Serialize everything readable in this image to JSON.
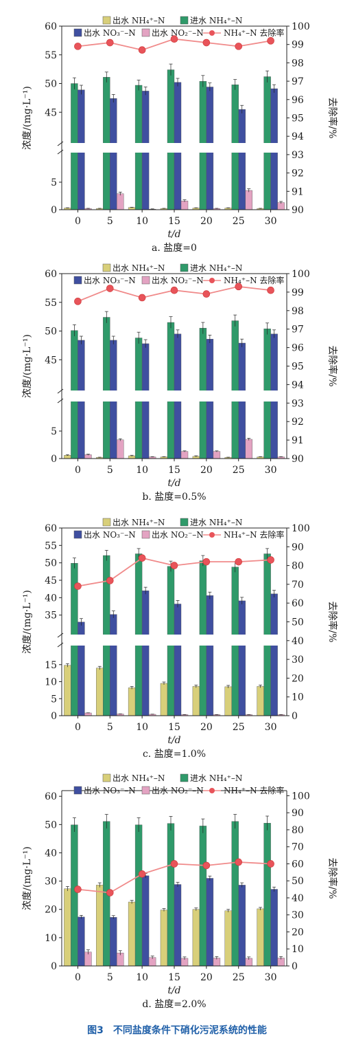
{
  "figure_caption": "图3　不同盐度条件下硝化污泥系统的性能",
  "legend_labels": {
    "eff_nh4": "出水 NH₄⁺–N",
    "inf_nh4": "进水 NH₄⁺–N",
    "eff_no3": "出水 NO₃⁻–N",
    "eff_no2": "出水 NO₂⁻–N",
    "removal": "NH₄⁺–N 去除率"
  },
  "colors": {
    "eff_nh4": "#d8cf7a",
    "inf_nh4": "#2f9a6a",
    "eff_no3": "#3f4fa0",
    "eff_no2": "#e3a3c2",
    "removal_line": "#f08a8a",
    "removal_marker": "#e8545a"
  },
  "chart_data": [
    {
      "type": "bar",
      "subtitle": "a. 盐度=0",
      "xlabel": "t/d",
      "ylabel": "浓度/(mg·L⁻¹)",
      "y2label": "去除率/%",
      "categories": [
        "0",
        "5",
        "10",
        "15",
        "20",
        "25",
        "30"
      ],
      "y_axis_broken": true,
      "y_lower_range": [
        0,
        10
      ],
      "y_upper_range": [
        40,
        60
      ],
      "y_lower_ticks": [
        0,
        5
      ],
      "y_upper_ticks": [
        45,
        50,
        55,
        60
      ],
      "y2_range": [
        90,
        100
      ],
      "y2_ticks": [
        90,
        91,
        92,
        93,
        94,
        95,
        96,
        97,
        98,
        99,
        100
      ],
      "series": [
        {
          "key": "eff_nh4",
          "name": "出水 NH₄⁺–N",
          "values": [
            0.3,
            0.2,
            0.4,
            0.2,
            0.3,
            0.3,
            0.2
          ],
          "errors": [
            0.05,
            0.05,
            0.05,
            0.05,
            0.05,
            0.05,
            0.05
          ]
        },
        {
          "key": "inf_nh4",
          "name": "进水 NH₄⁺–N",
          "values": [
            50.0,
            51.1,
            49.7,
            52.4,
            50.4,
            49.8,
            51.2
          ],
          "errors": [
            1.0,
            0.9,
            0.9,
            1.0,
            1.0,
            0.9,
            1.0
          ]
        },
        {
          "key": "eff_no3",
          "name": "出水 NO₃⁻–N",
          "values": [
            48.9,
            47.4,
            48.7,
            50.2,
            49.4,
            45.5,
            49.1
          ],
          "errors": [
            0.8,
            0.7,
            0.7,
            0.7,
            0.7,
            0.7,
            0.7
          ]
        },
        {
          "key": "eff_no2",
          "name": "出水 NO₂⁻–N",
          "values": [
            0.2,
            2.9,
            0.1,
            1.6,
            0.2,
            3.5,
            1.3
          ],
          "errors": [
            0.05,
            0.3,
            0.05,
            0.2,
            0.05,
            0.3,
            0.2
          ]
        }
      ],
      "line": {
        "key": "removal",
        "name": "NH₄⁺–N 去除率",
        "values": [
          98.9,
          99.1,
          98.7,
          99.3,
          99.1,
          98.9,
          99.2
        ]
      }
    },
    {
      "type": "bar",
      "subtitle": "b. 盐度=0.5%",
      "xlabel": "t/d",
      "ylabel": "浓度/(mg·L⁻¹)",
      "y2label": "去除率/%",
      "categories": [
        "0",
        "5",
        "10",
        "15",
        "20",
        "25",
        "30"
      ],
      "y_axis_broken": true,
      "y_lower_range": [
        0,
        10
      ],
      "y_upper_range": [
        40,
        60
      ],
      "y_lower_ticks": [
        0,
        5
      ],
      "y_upper_ticks": [
        45,
        50,
        55,
        60
      ],
      "y2_range": [
        90,
        100
      ],
      "y2_ticks": [
        90,
        91,
        92,
        93,
        94,
        95,
        96,
        97,
        98,
        99,
        100
      ],
      "series": [
        {
          "key": "eff_nh4",
          "name": "出水 NH₄⁺–N",
          "values": [
            0.6,
            0.2,
            0.5,
            0.3,
            0.4,
            0.2,
            0.3
          ],
          "errors": [
            0.1,
            0.05,
            0.1,
            0.05,
            0.1,
            0.05,
            0.05
          ]
        },
        {
          "key": "inf_nh4",
          "name": "进水 NH₄⁺–N",
          "values": [
            50.1,
            52.4,
            48.8,
            51.5,
            50.5,
            51.8,
            50.4
          ],
          "errors": [
            1.0,
            1.0,
            1.0,
            1.0,
            1.0,
            1.0,
            1.0
          ]
        },
        {
          "key": "eff_no3",
          "name": "出水 NO₃⁻–N",
          "values": [
            48.4,
            48.4,
            47.8,
            49.5,
            48.6,
            47.9,
            49.5
          ],
          "errors": [
            0.7,
            0.7,
            0.7,
            0.7,
            0.7,
            0.7,
            0.7
          ]
        },
        {
          "key": "eff_no2",
          "name": "出水 NO₂⁻–N",
          "values": [
            0.7,
            3.4,
            0.3,
            1.3,
            1.3,
            3.5,
            0.3
          ],
          "errors": [
            0.1,
            0.2,
            0.05,
            0.1,
            0.1,
            0.2,
            0.05
          ]
        }
      ],
      "line": {
        "key": "removal",
        "name": "NH₄⁺–N 去除率",
        "values": [
          98.5,
          99.2,
          98.7,
          99.1,
          98.9,
          99.3,
          99.1
        ]
      }
    },
    {
      "type": "bar",
      "subtitle": "c. 盐度=1.0%",
      "xlabel": "t/d",
      "ylabel": "浓度/(mg·L⁻¹)",
      "y2label": "去除率/%",
      "categories": [
        "0",
        "5",
        "10",
        "15",
        "20",
        "25",
        "30"
      ],
      "y_axis_broken": true,
      "y_lower_range": [
        0,
        20
      ],
      "y_upper_range": [
        30,
        60
      ],
      "y_lower_ticks": [
        0,
        5,
        10,
        15
      ],
      "y_upper_ticks": [
        35,
        40,
        45,
        50,
        55,
        60
      ],
      "y2_range": [
        0,
        100
      ],
      "y2_ticks": [
        0,
        10,
        20,
        30,
        40,
        50,
        60,
        70,
        80,
        90,
        100
      ],
      "series": [
        {
          "key": "eff_nh4",
          "name": "出水 NH₄⁺–N",
          "values": [
            14.8,
            14.0,
            8.2,
            9.5,
            8.6,
            8.5,
            8.6
          ],
          "errors": [
            0.5,
            0.5,
            0.4,
            0.4,
            0.4,
            0.4,
            0.4
          ]
        },
        {
          "key": "inf_nh4",
          "name": "进水 NH₄⁺–N",
          "values": [
            49.9,
            52.1,
            52.6,
            49.0,
            50.6,
            48.8,
            52.6
          ],
          "errors": [
            1.5,
            1.5,
            1.5,
            1.5,
            1.5,
            1.5,
            1.5
          ]
        },
        {
          "key": "eff_no3",
          "name": "出水 NO₃⁻–N",
          "values": [
            33.0,
            35.2,
            42.0,
            38.2,
            40.6,
            39.1,
            41.1
          ],
          "errors": [
            1.0,
            1.0,
            1.0,
            1.0,
            1.0,
            1.0,
            1.0
          ]
        },
        {
          "key": "eff_no2",
          "name": "出水 NO₂⁻–N",
          "values": [
            0.8,
            0.5,
            0.4,
            0.3,
            0.3,
            0.3,
            0.3
          ],
          "errors": [
            0.05,
            0.05,
            0.05,
            0.05,
            0.05,
            0.05,
            0.05
          ]
        }
      ],
      "line": {
        "key": "removal",
        "name": "NH₄⁺–N 去除率",
        "values": [
          69,
          72,
          84,
          80,
          82,
          82,
          83
        ]
      }
    },
    {
      "type": "bar",
      "subtitle": "d. 盐度=2.0%",
      "xlabel": "t/d",
      "ylabel": "浓度/(mg·L⁻¹)",
      "y2label": "去除率/%",
      "categories": [
        "0",
        "5",
        "10",
        "15",
        "20",
        "25",
        "30"
      ],
      "y_axis_broken": false,
      "y_range": [
        0,
        62
      ],
      "y_ticks": [
        0,
        10,
        20,
        30,
        40,
        50,
        60
      ],
      "y2_range": [
        0,
        103
      ],
      "y2_ticks": [
        0,
        10,
        20,
        30,
        40,
        50,
        60,
        70,
        80,
        90,
        100
      ],
      "series": [
        {
          "key": "eff_nh4",
          "name": "出水 NH₄⁺–N",
          "values": [
            27.3,
            28.6,
            22.6,
            19.8,
            20.0,
            19.5,
            20.2
          ],
          "errors": [
            0.8,
            0.8,
            0.6,
            0.5,
            0.5,
            0.5,
            0.5
          ]
        },
        {
          "key": "inf_nh4",
          "name": "进水 NH₄⁺–N",
          "values": [
            49.9,
            51.1,
            49.9,
            50.4,
            49.5,
            51.1,
            50.5
          ],
          "errors": [
            2.5,
            2.5,
            2.5,
            2.5,
            2.5,
            2.5,
            2.5
          ]
        },
        {
          "key": "eff_no3",
          "name": "出水 NO₃⁻–N",
          "values": [
            17.3,
            17.2,
            31.9,
            28.8,
            31.0,
            28.6,
            27.1
          ],
          "errors": [
            0.6,
            0.6,
            0.8,
            0.8,
            0.8,
            0.8,
            0.8
          ]
        },
        {
          "key": "eff_no2",
          "name": "出水 NO₂⁻–N",
          "values": [
            4.9,
            4.6,
            3.0,
            2.7,
            2.8,
            2.7,
            2.8
          ],
          "errors": [
            0.8,
            0.8,
            0.5,
            0.5,
            0.5,
            0.5,
            0.5
          ]
        }
      ],
      "line": {
        "key": "removal",
        "name": "NH₄⁺–N 去除率",
        "values": [
          45,
          43,
          54,
          60,
          59,
          61,
          60
        ]
      }
    }
  ]
}
